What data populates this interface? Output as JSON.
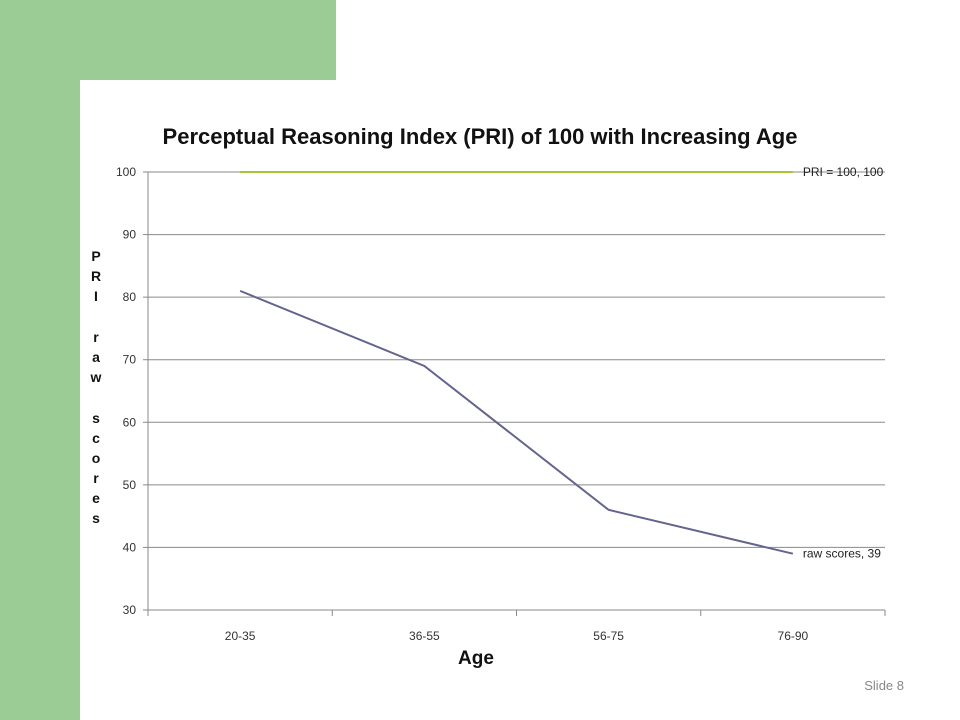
{
  "slide": {
    "number_label": "Slide 8"
  },
  "colors": {
    "accent_green": "#9ccc96",
    "pri_line": "#a6c536",
    "raw_line": "#64648e",
    "grid": "#8a8a8a"
  },
  "chart_data": {
    "type": "line",
    "title": "Perceptual Reasoning Index (PRI) of 100 with Increasing Age",
    "xlabel": "Age",
    "ylabel": "PRI raw scores",
    "categories": [
      "20-35",
      "36-55",
      "56-75",
      "76-90"
    ],
    "ylim": [
      30,
      100
    ],
    "yticks": [
      30,
      40,
      50,
      60,
      70,
      80,
      90,
      100
    ],
    "grid": true,
    "series": [
      {
        "name": "PRI",
        "values": [
          100,
          100,
          100,
          100
        ],
        "end_label": "PRI = 100, 100",
        "color": "#a6c536"
      },
      {
        "name": "raw scores",
        "values": [
          81,
          69,
          46,
          39
        ],
        "end_label": "raw scores, 39",
        "color": "#64648e"
      }
    ]
  }
}
